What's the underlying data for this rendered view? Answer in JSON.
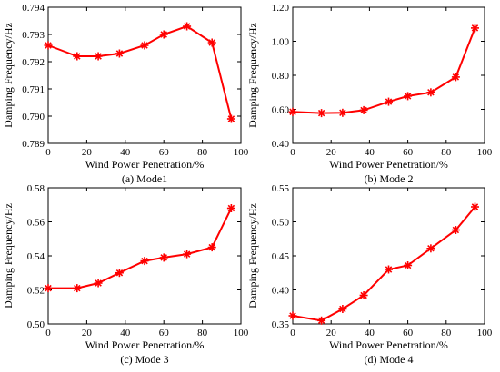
{
  "figure": {
    "series_color": "#ff0000"
  },
  "chart_data": [
    {
      "type": "line",
      "marker": "asterisk",
      "caption": "(a) Mode1",
      "xlabel": "Wind Power Penetration/%",
      "ylabel": "Damping Frequency/Hz",
      "xlim": [
        0,
        100
      ],
      "ylim": [
        0.789,
        0.794
      ],
      "xticks": [
        0,
        20,
        40,
        60,
        80,
        100
      ],
      "yticks": [
        0.789,
        0.79,
        0.791,
        0.792,
        0.793,
        0.794
      ],
      "x_tick_labels": [
        "0",
        "20",
        "40",
        "60",
        "80",
        "100"
      ],
      "y_tick_labels": [
        "0.789",
        "0.790",
        "0.791",
        "0.792",
        "0.793",
        "0.794"
      ],
      "grid": false,
      "x": [
        0,
        15,
        26,
        37,
        50,
        60,
        72,
        85,
        95
      ],
      "y": [
        0.7926,
        0.7922,
        0.7922,
        0.7923,
        0.7926,
        0.793,
        0.7933,
        0.7927,
        0.7899
      ]
    },
    {
      "type": "line",
      "marker": "asterisk",
      "caption": "(b) Mode 2",
      "xlabel": "Wind Power Penetration/%",
      "ylabel": "Damping Frequency/Hz",
      "xlim": [
        0,
        100
      ],
      "ylim": [
        0.4,
        1.2
      ],
      "xticks": [
        0,
        20,
        40,
        60,
        80,
        100
      ],
      "yticks": [
        0.4,
        0.6,
        0.8,
        1.0,
        1.2
      ],
      "x_tick_labels": [
        "0",
        "20",
        "40",
        "60",
        "80",
        "100"
      ],
      "y_tick_labels": [
        "0.40",
        "0.60",
        "0.80",
        "1.00",
        "1.20"
      ],
      "grid": false,
      "x": [
        0,
        15,
        26,
        37,
        50,
        60,
        72,
        85,
        95
      ],
      "y": [
        0.585,
        0.578,
        0.58,
        0.595,
        0.645,
        0.678,
        0.7,
        0.79,
        1.078
      ]
    },
    {
      "type": "line",
      "marker": "asterisk",
      "caption": "(c) Mode 3",
      "xlabel": "Wind Power Penetration/%",
      "ylabel": "Damping Frequency/Hz",
      "xlim": [
        0,
        100
      ],
      "ylim": [
        0.5,
        0.58
      ],
      "xticks": [
        0,
        20,
        40,
        60,
        80,
        100
      ],
      "yticks": [
        0.5,
        0.52,
        0.54,
        0.56,
        0.58
      ],
      "x_tick_labels": [
        "0",
        "20",
        "40",
        "60",
        "80",
        "100"
      ],
      "y_tick_labels": [
        "0.50",
        "0.52",
        "0.54",
        "0.56",
        "0.58"
      ],
      "grid": false,
      "x": [
        0,
        15,
        26,
        37,
        50,
        60,
        72,
        85,
        95
      ],
      "y": [
        0.521,
        0.521,
        0.524,
        0.53,
        0.537,
        0.539,
        0.541,
        0.545,
        0.568
      ]
    },
    {
      "type": "line",
      "marker": "asterisk",
      "caption": "(d) Mode 4",
      "xlabel": "Wind Power Penetration/%",
      "ylabel": "Damping Frequency/Hz",
      "xlim": [
        0,
        100
      ],
      "ylim": [
        0.35,
        0.55
      ],
      "xticks": [
        0,
        20,
        40,
        60,
        80,
        100
      ],
      "yticks": [
        0.35,
        0.4,
        0.45,
        0.5,
        0.55
      ],
      "x_tick_labels": [
        "0",
        "20",
        "40",
        "60",
        "80",
        "100"
      ],
      "y_tick_labels": [
        "0.35",
        "0.40",
        "0.45",
        "0.50",
        "0.55"
      ],
      "grid": false,
      "x": [
        0,
        15,
        26,
        37,
        50,
        60,
        72,
        85,
        95
      ],
      "y": [
        0.362,
        0.355,
        0.372,
        0.392,
        0.43,
        0.436,
        0.461,
        0.488,
        0.522
      ]
    }
  ]
}
